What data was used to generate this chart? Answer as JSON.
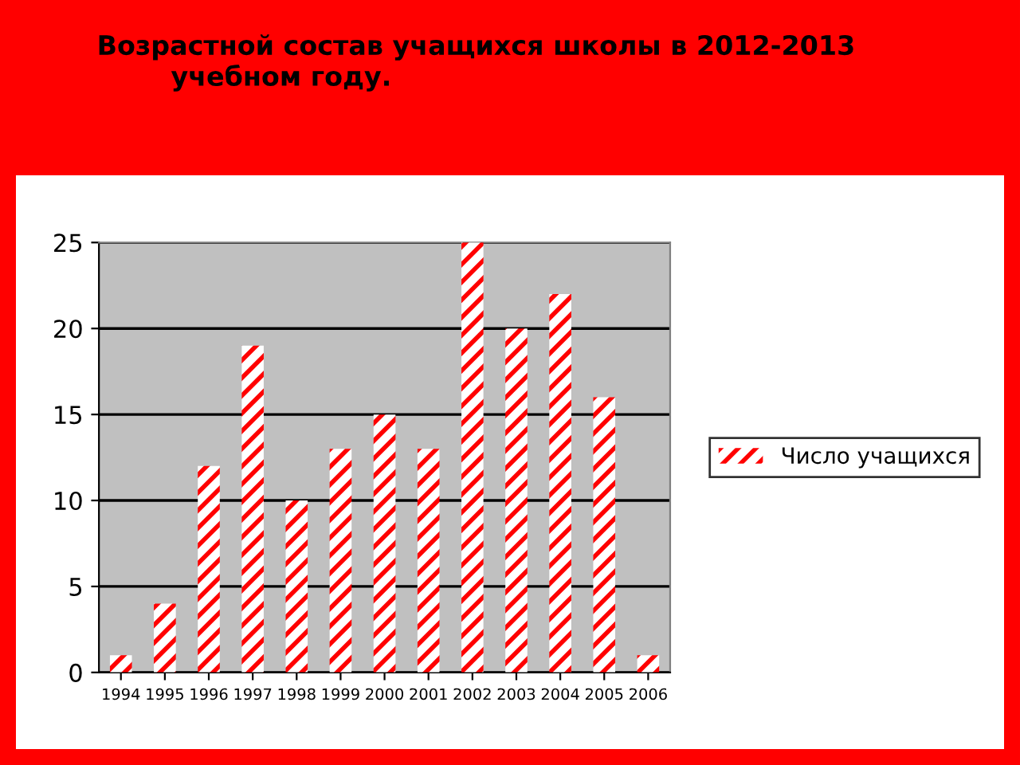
{
  "chart_data": {
    "type": "bar",
    "title": "Возрастной состав учащихся школы в 2012-2013\n        учебном году.",
    "categories": [
      "1994",
      "1995",
      "1996",
      "1997",
      "1998",
      "1999",
      "2000",
      "2001",
      "2002",
      "2003",
      "2004",
      "2005",
      "2006"
    ],
    "series": [
      {
        "name": "Число учащихся",
        "color": "#ff0000",
        "values": [
          1,
          4,
          12,
          19,
          10,
          13,
          15,
          13,
          25,
          20,
          22,
          16,
          1
        ]
      }
    ],
    "ylim": [
      0,
      25
    ],
    "yticks": [
      0,
      5,
      10,
      15,
      20,
      25
    ],
    "grid": "y",
    "legend": "right"
  }
}
